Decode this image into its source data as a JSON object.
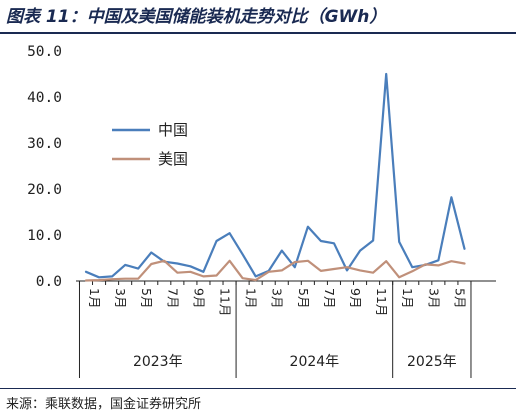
{
  "header": {
    "title": "图表 11：中国及美国储能装机走势对比（GWh）"
  },
  "footer": {
    "source": "来源：乘联数据，国金证券研究所"
  },
  "colors": {
    "china": "#4a7ebb",
    "usa": "#c0907a",
    "title": "#1a2a52"
  },
  "chart_data": {
    "type": "line",
    "title": "图表 11：中国及美国储能装机走势对比（GWh）",
    "ylim": [
      0,
      50
    ],
    "yticks": [
      0,
      10,
      20,
      30,
      40,
      50
    ],
    "ytick_labels": [
      "0.0",
      "10.0",
      "20.0",
      "30.0",
      "40.0",
      "50.0"
    ],
    "x_labels": [
      "1月",
      "",
      "3月",
      "",
      "5月",
      "",
      "7月",
      "",
      "9月",
      "",
      "11月",
      "",
      "1月",
      "",
      "3月",
      "",
      "5月",
      "",
      "7月",
      "",
      "9月",
      "",
      "11月",
      "",
      "1月",
      "",
      "3月",
      "",
      "5月",
      ""
    ],
    "year_groups": [
      {
        "label": "2023年",
        "start": 0,
        "end": 11
      },
      {
        "label": "2024年",
        "start": 12,
        "end": 23
      },
      {
        "label": "2025年",
        "start": 24,
        "end": 29
      }
    ],
    "legend_position": "left-middle",
    "grid": false,
    "series": [
      {
        "name": "中国",
        "color": "#4a7ebb",
        "values": [
          2.0,
          0.8,
          1.0,
          3.5,
          2.7,
          6.2,
          4.2,
          3.8,
          3.2,
          2.0,
          8.7,
          10.4,
          5.8,
          1.0,
          2.2,
          6.6,
          3.0,
          11.8,
          8.7,
          8.2,
          2.3,
          6.6,
          8.8,
          45.0,
          8.5,
          3.0,
          3.5,
          4.5,
          18.2,
          7.0
        ]
      },
      {
        "name": "美国",
        "color": "#c0907a",
        "values": [
          0.1,
          0.2,
          0.4,
          0.5,
          0.5,
          3.7,
          4.4,
          1.8,
          2.0,
          1.0,
          1.2,
          4.4,
          0.6,
          0.2,
          2.0,
          2.3,
          4.1,
          4.4,
          2.2,
          2.6,
          3.0,
          2.3,
          1.8,
          4.3,
          0.8,
          2.1,
          3.6,
          3.4,
          4.3,
          3.8
        ]
      }
    ]
  }
}
